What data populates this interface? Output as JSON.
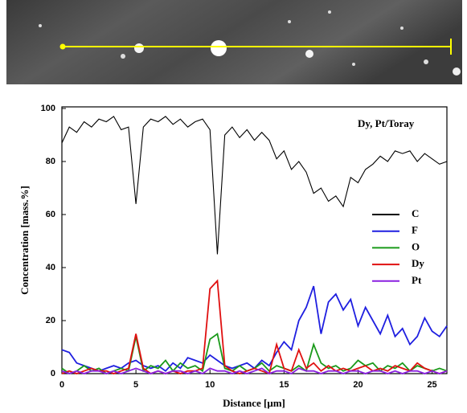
{
  "chart_data": {
    "type": "line",
    "annotation": "Dy, Pt/Toray",
    "x_label": "Distance  [μm]",
    "y_label": "Concentration  [mass.%]",
    "x": [
      0,
      0.5,
      1,
      1.5,
      2,
      2.5,
      3,
      3.5,
      4,
      4.5,
      5,
      5.5,
      6,
      6.5,
      7,
      7.5,
      8,
      8.5,
      9,
      9.5,
      10,
      10.5,
      11,
      11.5,
      12,
      12.5,
      13,
      13.5,
      14,
      14.5,
      15,
      15.5,
      16,
      16.5,
      17,
      17.5,
      18,
      18.5,
      19,
      19.5,
      20,
      20.5,
      21,
      21.5,
      22,
      22.5,
      23,
      23.5,
      24,
      24.5,
      25,
      25.5,
      26
    ],
    "series": [
      {
        "name": "C",
        "color": "#000000",
        "values": [
          87,
          93,
          91,
          95,
          93,
          96,
          95,
          97,
          92,
          93,
          64,
          93,
          96,
          95,
          97,
          94,
          96,
          93,
          95,
          96,
          92,
          45,
          90,
          93,
          89,
          92,
          88,
          91,
          88,
          81,
          84,
          77,
          80,
          76,
          68,
          70,
          65,
          67,
          63,
          74,
          72,
          77,
          79,
          82,
          80,
          84,
          83,
          84,
          80,
          83,
          81,
          79,
          80
        ]
      },
      {
        "name": "F",
        "color": "#1f1fe0",
        "values": [
          9,
          8,
          4,
          3,
          2,
          1,
          2,
          3,
          2,
          4,
          5,
          3,
          2,
          3,
          1,
          4,
          2,
          6,
          5,
          4,
          7,
          5,
          3,
          2,
          3,
          4,
          2,
          5,
          3,
          8,
          12,
          9,
          20,
          25,
          33,
          15,
          27,
          30,
          24,
          28,
          18,
          25,
          20,
          15,
          22,
          14,
          17,
          11,
          14,
          21,
          16,
          14,
          18
        ]
      },
      {
        "name": "O",
        "color": "#1a9a1a",
        "values": [
          2,
          0,
          1,
          3,
          1,
          2,
          0,
          1,
          2,
          1,
          14,
          1,
          3,
          2,
          5,
          1,
          4,
          2,
          3,
          1,
          13,
          15,
          2,
          1,
          3,
          1,
          2,
          4,
          1,
          3,
          2,
          1,
          3,
          1,
          11,
          4,
          2,
          3,
          1,
          2,
          5,
          3,
          4,
          1,
          3,
          2,
          4,
          1,
          3,
          2,
          1,
          2,
          1
        ]
      },
      {
        "name": "Dy",
        "color": "#e01010",
        "values": [
          0,
          1,
          0,
          1,
          2,
          1,
          1,
          0,
          1,
          2,
          15,
          2,
          0,
          1,
          0,
          1,
          0,
          1,
          1,
          2,
          32,
          35,
          3,
          1,
          0,
          1,
          2,
          1,
          0,
          11,
          2,
          1,
          9,
          2,
          4,
          1,
          3,
          1,
          2,
          1,
          2,
          3,
          1,
          2,
          1,
          3,
          2,
          1,
          4,
          2,
          1,
          0,
          1
        ]
      },
      {
        "name": "Pt",
        "color": "#8a20e0",
        "values": [
          1,
          0,
          1,
          0,
          1,
          1,
          0,
          1,
          0,
          1,
          2,
          1,
          0,
          1,
          0,
          1,
          1,
          0,
          1,
          0,
          2,
          1,
          1,
          0,
          1,
          0,
          1,
          2,
          0,
          1,
          1,
          0,
          2,
          1,
          1,
          0,
          1,
          1,
          0,
          1,
          1,
          0,
          1,
          1,
          0,
          1,
          0,
          1,
          1,
          0,
          1,
          0,
          1
        ]
      }
    ],
    "xlim": [
      0,
      26
    ],
    "xticks": [
      0,
      5,
      10,
      15,
      20,
      25
    ],
    "ylim": [
      0,
      100
    ],
    "yticks": [
      0,
      20,
      40,
      60,
      80,
      100
    ]
  }
}
